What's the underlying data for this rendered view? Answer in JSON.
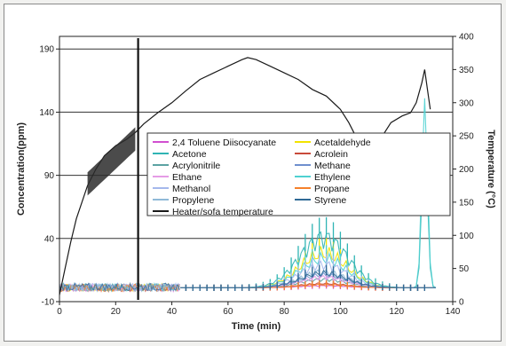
{
  "chart_data": {
    "type": "line",
    "xlabel": "Time (min)",
    "ylabel": "Concentration(ppm)",
    "y2label": "Temperature (°C)",
    "xlim": [
      0,
      140
    ],
    "ylim": [
      -10,
      200
    ],
    "y2lim": [
      0,
      400
    ],
    "x_ticks": [
      0,
      20,
      40,
      60,
      80,
      100,
      120,
      140
    ],
    "y_ticks": [
      -10,
      40,
      90,
      140,
      190
    ],
    "y2_ticks": [
      0,
      50,
      100,
      150,
      200,
      250,
      300,
      350,
      400
    ],
    "grid": "horizontal at left-axis ticks",
    "legend_position": "center",
    "series": [
      {
        "name": "2,4 Toluene Diisocyanate",
        "color": "#d14fd0",
        "peak_x": 94,
        "peak_y": 2
      },
      {
        "name": "Acetaldehyde",
        "color": "#f2e300",
        "peak_x": 94,
        "peak_y": 33
      },
      {
        "name": "Acetone",
        "color": "#2fb4b4",
        "peak_x": 94,
        "peak_y": 48,
        "late_peak_x": 130,
        "late_peak_y": 120
      },
      {
        "name": "Acrolein",
        "color": "#c84a3a",
        "peak_x": 94,
        "peak_y": 4
      },
      {
        "name": "Acrylonitrile",
        "color": "#5ca3a3",
        "peak_x": 94,
        "peak_y": 8
      },
      {
        "name": "Methane",
        "color": "#6f8fce",
        "peak_x": 94,
        "peak_y": 12
      },
      {
        "name": "Ethane",
        "color": "#e59ce6",
        "peak_x": 94,
        "peak_y": 10
      },
      {
        "name": "Ethylene",
        "color": "#4fd1d1",
        "peak_x": 94,
        "peak_y": 28,
        "late_peak_x": 130,
        "late_peak_y": 150
      },
      {
        "name": "Methanol",
        "color": "#a5b8ec",
        "peak_x": 94,
        "peak_y": 22
      },
      {
        "name": "Propane",
        "color": "#f5812b",
        "peak_x": 94,
        "peak_y": 3
      },
      {
        "name": "Propylene",
        "color": "#8fb9d8",
        "peak_x": 94,
        "peak_y": 15
      },
      {
        "name": "Styrene",
        "color": "#2f6996",
        "peak_x": 94,
        "peak_y": 14
      },
      {
        "name": "Heater/sofa temperature",
        "color": "#1a1a1a",
        "axis": "right",
        "x": [
          0,
          2,
          4,
          6,
          8,
          10,
          13,
          16,
          20,
          24,
          27,
          30,
          35,
          40,
          45,
          50,
          55,
          60,
          65,
          67,
          70,
          75,
          80,
          85,
          90,
          95,
          100,
          103,
          106,
          108,
          110,
          112,
          115,
          118,
          122,
          125,
          127,
          129,
          130,
          131,
          132
        ],
        "y": [
          10,
          50,
          90,
          125,
          150,
          175,
          200,
          220,
          235,
          245,
          255,
          268,
          285,
          300,
          318,
          335,
          345,
          355,
          365,
          368,
          365,
          355,
          345,
          335,
          320,
          310,
          290,
          270,
          245,
          225,
          210,
          225,
          250,
          270,
          280,
          285,
          300,
          330,
          350,
          320,
          290
        ]
      }
    ]
  }
}
